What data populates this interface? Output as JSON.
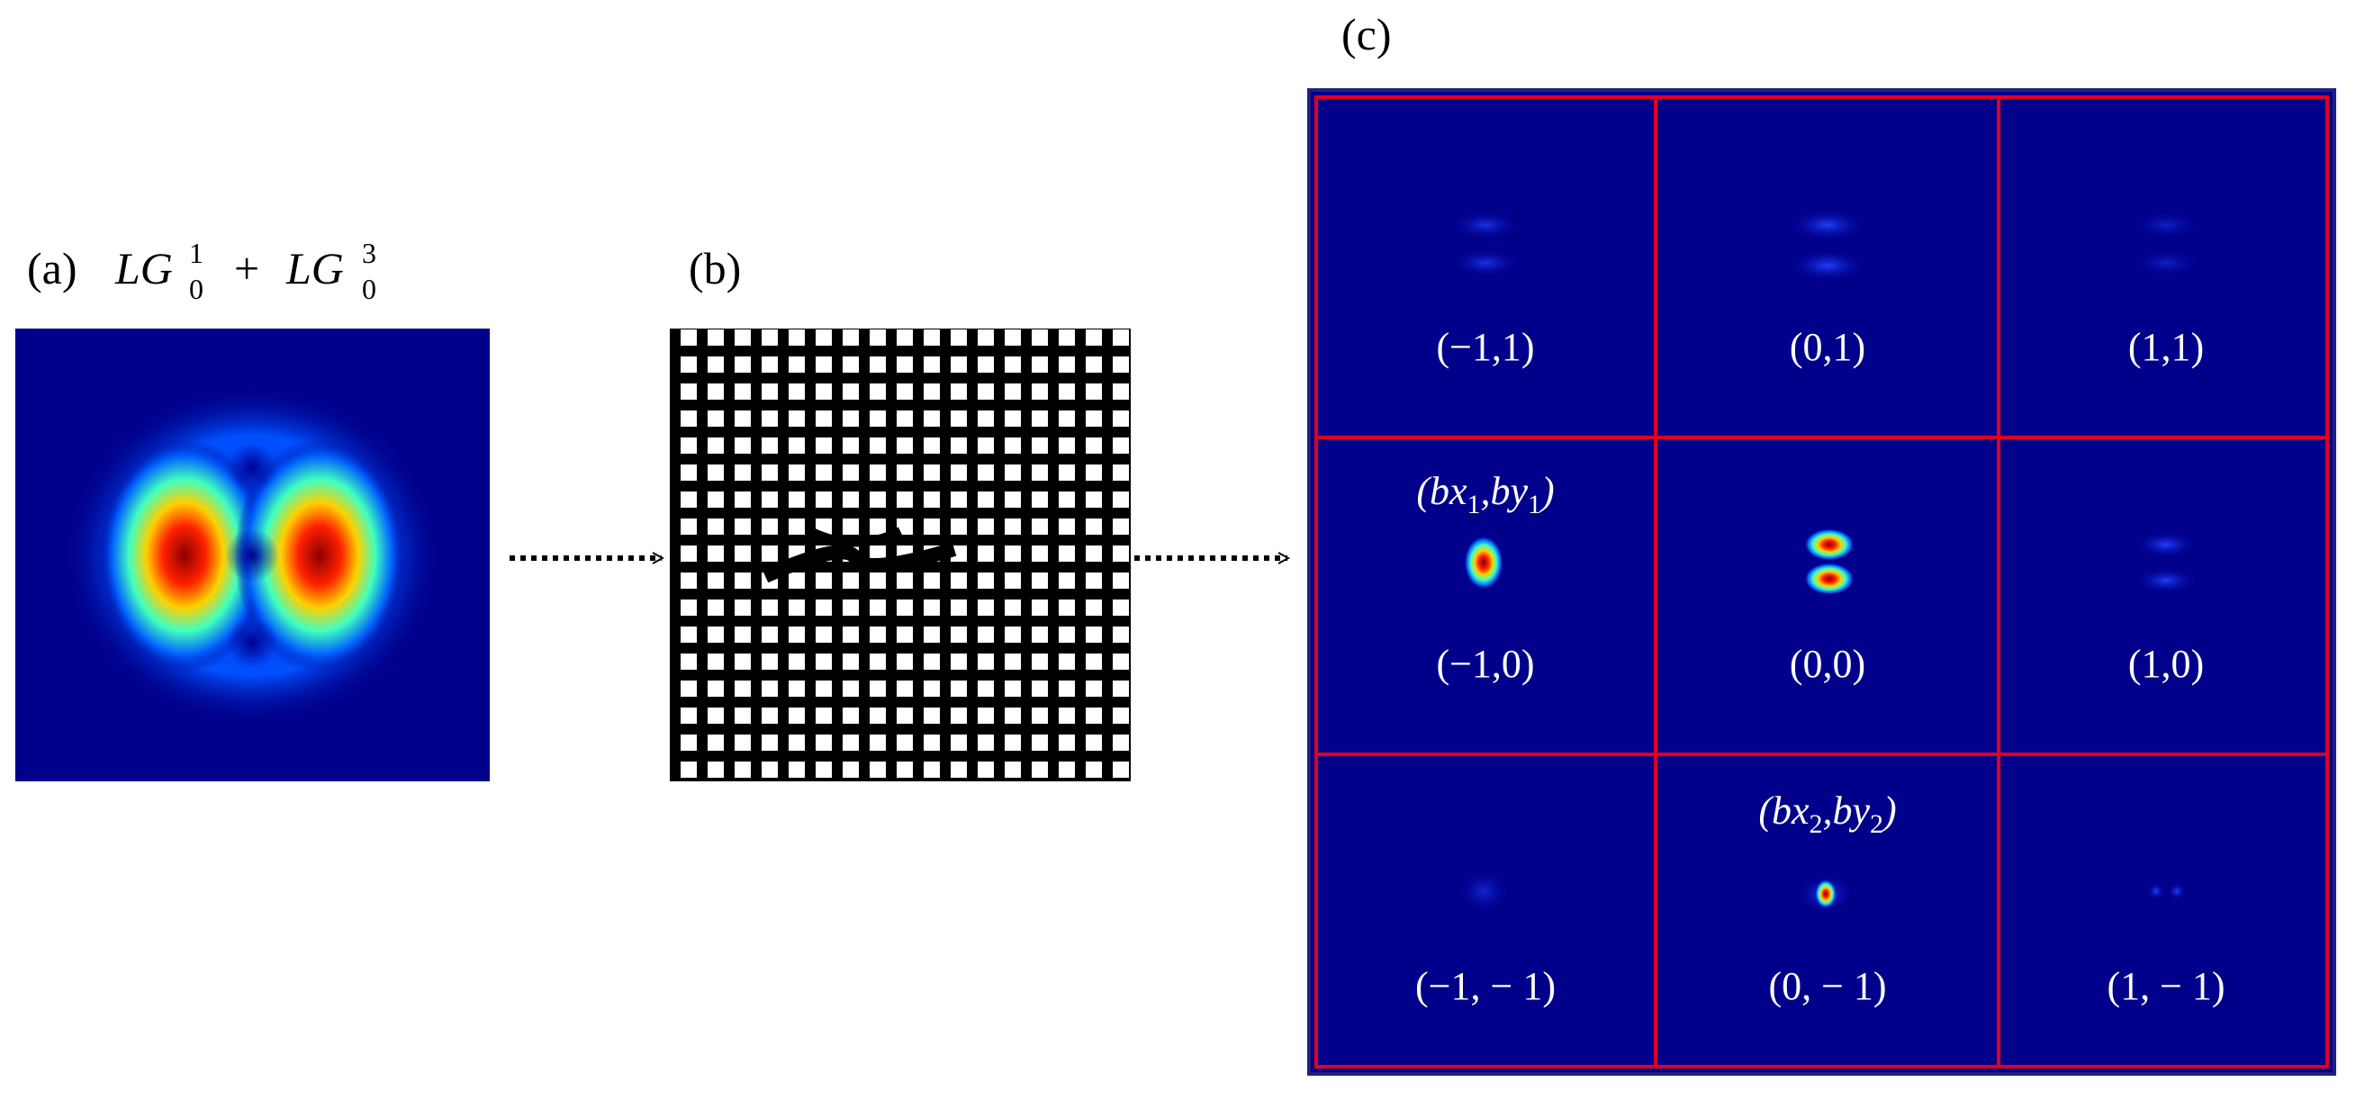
{
  "panel_a": {
    "label": "(a)",
    "formula": [
      "LG",
      "1",
      "0",
      "+",
      "LG",
      "3",
      "0"
    ]
  },
  "panel_b": {
    "label": "(b)"
  },
  "panel_c": {
    "label": "(c)",
    "cells": [
      "(−1,1)",
      "(0,1)",
      "(1,1)",
      "(−1,0)",
      "(0,0)",
      "(1,0)",
      "(−1, − 1)",
      "(0, − 1)",
      "(1, − 1)"
    ],
    "annotation_1": [
      "(bx",
      "1",
      ",by",
      "1",
      ")"
    ],
    "annotation_2": [
      "(bx",
      "2",
      ",by",
      "2",
      ")"
    ]
  }
}
